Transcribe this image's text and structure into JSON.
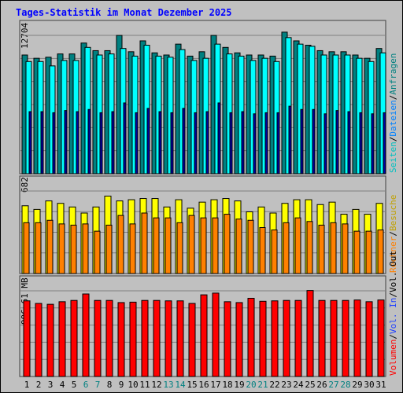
{
  "chart_data": {
    "type": "bar",
    "title": "Tages-Statistik im Monat Dezember 2025",
    "days": [
      "1",
      "2",
      "3",
      "4",
      "5",
      "6",
      "7",
      "8",
      "9",
      "10",
      "11",
      "12",
      "13",
      "14",
      "15",
      "16",
      "17",
      "18",
      "19",
      "20",
      "21",
      "22",
      "23",
      "24",
      "25",
      "26",
      "27",
      "28",
      "29",
      "30",
      "31"
    ],
    "weekend_days": [
      "6",
      "7",
      "13",
      "14",
      "20",
      "21",
      "27",
      "28"
    ],
    "colors": {
      "weekday_label": "#000000",
      "weekend_label": "#008080",
      "anfragen": "#008080",
      "dateien": "#00ffff",
      "seiten": "#0000a0",
      "besuche": "#ffff00",
      "rechner": "#ff8000",
      "volumen": "#ff0000",
      "panel_bg": "#c0c0c0",
      "grid": "#808080"
    },
    "panels": [
      {
        "ylabel": "12704",
        "ymax": 12704,
        "series": [
          {
            "name": "Anfragen",
            "values": [
              10900,
              10600,
              10700,
              11000,
              11000,
              12000,
              11300,
              11300,
              12700,
              11200,
              12200,
              11100,
              10900,
              11900,
              10800,
              11200,
              12700,
              11600,
              11100,
              10900,
              10900,
              10800,
              13000,
              12200,
              11800,
              11300,
              11200,
              11200,
              10900,
              10600,
              11500
            ]
          },
          {
            "name": "Dateien",
            "values": [
              10300,
              10300,
              9900,
              10400,
              10400,
              11600,
              10900,
              11000,
              11500,
              10800,
              11800,
              10800,
              10700,
              11400,
              10400,
              10600,
              11900,
              11000,
              10800,
              10400,
              10600,
              10300,
              12500,
              11900,
              11700,
              10900,
              10900,
              10900,
              10600,
              10300,
              11100
            ]
          },
          {
            "name": "Seiten",
            "values": [
              5700,
              5700,
              5600,
              5800,
              5700,
              5900,
              5600,
              5700,
              6500,
              5600,
              6000,
              5700,
              5600,
              6000,
              5600,
              5700,
              6500,
              5600,
              5700,
              5500,
              5600,
              5600,
              6200,
              5900,
              5900,
              5500,
              5800,
              5700,
              5600,
              5500,
              5600
            ]
          }
        ]
      },
      {
        "ylabel": "682",
        "ymax": 682,
        "series": [
          {
            "name": "Besuche",
            "values": [
              560,
              530,
              600,
              580,
              550,
              500,
              550,
              640,
              600,
              610,
              620,
              620,
              550,
              610,
              540,
              590,
              610,
              620,
              600,
              510,
              550,
              500,
              580,
              610,
              610,
              570,
              590,
              490,
              530,
              490,
              580
            ]
          },
          {
            "name": "Rechner",
            "values": [
              420,
              420,
              440,
              410,
              400,
              410,
              350,
              400,
              480,
              410,
              500,
              460,
              460,
              420,
              480,
              460,
              460,
              490,
              450,
              440,
              380,
              360,
              420,
              460,
              430,
              400,
              420,
              410,
              350,
              350,
              360
            ]
          }
        ]
      },
      {
        "ylabel": "996.61 MB",
        "ymax": 996.61,
        "series": [
          {
            "name": "Volumen",
            "values": [
              880,
              850,
              840,
              870,
              885,
              960,
              885,
              885,
              860,
              865,
              885,
              885,
              880,
              880,
              850,
              950,
              970,
              870,
              860,
              910,
              875,
              880,
              885,
              885,
              1000,
              885,
              885,
              885,
              890,
              870,
              890
            ]
          }
        ]
      }
    ],
    "legend": {
      "panel1": [
        {
          "text": "Anfragen",
          "color": "#008080"
        },
        {
          "text": "Dateien",
          "color": "#0080ff"
        },
        {
          "text": "Seiten",
          "color": "#00c0c0"
        }
      ],
      "panel2": [
        {
          "text": "Besuche",
          "color": "#c0a000"
        },
        {
          "text": "Rechner",
          "color": "#ff8000"
        }
      ],
      "panel3": [
        {
          "text": "Volumen",
          "color": "#ff0000"
        },
        {
          "text": "Vol. In",
          "color": "#2040ff"
        },
        {
          "text": "Vol. Out",
          "color": "#000000"
        }
      ],
      "separator": "/"
    }
  }
}
